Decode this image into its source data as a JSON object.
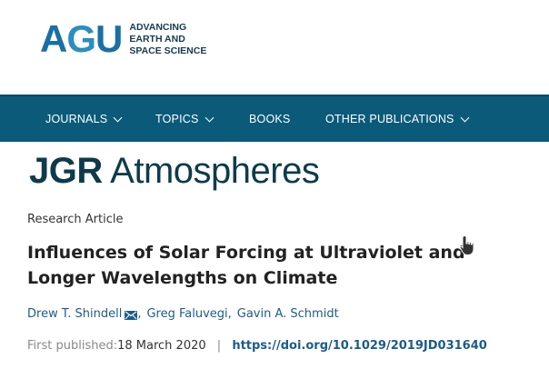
{
  "header": {
    "logo": {
      "letters": [
        "A",
        "G",
        "U"
      ],
      "tagline": [
        "ADVANCING",
        "EARTH AND",
        "SPACE SCIENCE"
      ]
    }
  },
  "nav": {
    "items": [
      {
        "label": "JOURNALS",
        "has_dropdown": true
      },
      {
        "label": "TOPICS",
        "has_dropdown": true
      },
      {
        "label": "BOOKS",
        "has_dropdown": false
      },
      {
        "label": "OTHER PUBLICATIONS",
        "has_dropdown": true
      }
    ]
  },
  "journal": {
    "name_bold": "JGR",
    "name_rest": " Atmospheres"
  },
  "article": {
    "type": "Research Article",
    "title": "Influences of Solar Forcing at Ultraviolet and Longer Wavelengths on Climate",
    "authors": [
      "Drew T. Shindell",
      "Greg Faluvegi",
      "Gavin A. Schmidt"
    ],
    "first_published_label": "First published:",
    "first_published_date": "18 March 2020",
    "doi": "https://doi.org/10.1029/2019JD031640"
  },
  "colors": {
    "nav_bg": "#0b5a7a",
    "link": "#1b5c8a",
    "journal_title": "#0e3b4c"
  },
  "icons": {
    "author_contact": "envelope-icon",
    "cursor": "hand-pointer-icon"
  }
}
